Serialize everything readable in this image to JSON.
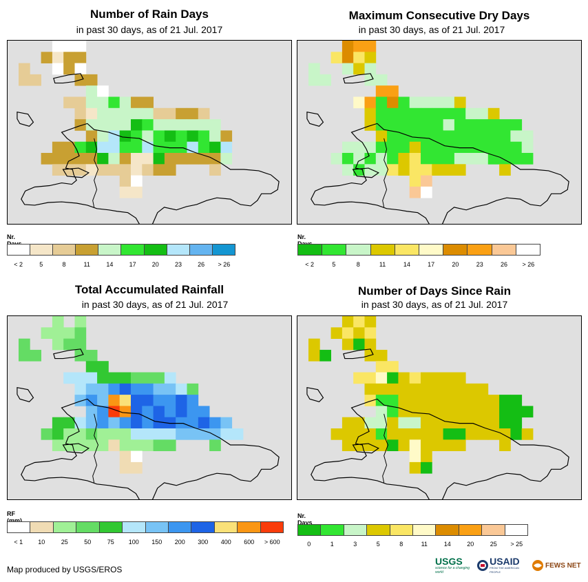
{
  "panels": [
    {
      "id": "rain-days",
      "title": "Number of Rain Days",
      "subtitle": "in past 30 days, as of 21 Jul. 2017",
      "legend_title": "Nr. Days",
      "legend_labels": [
        "< 2",
        "5",
        "8",
        "11",
        "14",
        "17",
        "20",
        "23",
        "26",
        "> 26"
      ],
      "legend_colors": [
        "#ffffff",
        "#f5e6c8",
        "#e6cc96",
        "#c8a032",
        "#c8f5c8",
        "#32e632",
        "#14be14",
        "#b4e6fa",
        "#64b4f0",
        "#1496d2"
      ]
    },
    {
      "id": "dry-days",
      "title": "Maximum Consecutive Dry Days",
      "subtitle": "in past 30 days, as of 21 Jul. 2017",
      "legend_title": "Nr. Days",
      "legend_labels": [
        "< 2",
        "5",
        "8",
        "11",
        "14",
        "17",
        "20",
        "23",
        "26",
        "> 26"
      ],
      "legend_colors": [
        "#14be14",
        "#32e632",
        "#c8f5c8",
        "#dcc800",
        "#fae664",
        "#fffac8",
        "#dc8c00",
        "#faa014",
        "#fac896",
        "#ffffff"
      ]
    },
    {
      "id": "rainfall",
      "title": "Total Accumulated Rainfall",
      "subtitle": "in past 30 days, as of 21 Jul. 2017",
      "legend_title": "RF (mm)",
      "legend_labels": [
        "< 1",
        "10",
        "25",
        "50",
        "75",
        "100",
        "150",
        "200",
        "300",
        "400",
        "600",
        "> 600"
      ],
      "legend_colors": [
        "#ffffff",
        "#f0dcb4",
        "#a0f096",
        "#64dc64",
        "#32c832",
        "#b4e6fa",
        "#78c3f5",
        "#3c96f0",
        "#1e64e6",
        "#fae178",
        "#fa9614",
        "#fa3c0a"
      ]
    },
    {
      "id": "since-rain",
      "title": "Number of Days Since Rain",
      "subtitle": "in past 30 days, as of 21 Jul. 2017",
      "legend_title": "Nr. Days",
      "legend_labels": [
        "0",
        "1",
        "3",
        "5",
        "8",
        "11",
        "14",
        "20",
        "25",
        "> 25"
      ],
      "legend_colors": [
        "#14be14",
        "#32e632",
        "#c8f5c8",
        "#dcc800",
        "#fae664",
        "#fffac8",
        "#dc8c00",
        "#faa014",
        "#fac896",
        "#ffffff"
      ]
    }
  ],
  "footer": "Map produced by USGS/EROS",
  "logos": [
    "USGS",
    "USAID",
    "FEWS NET"
  ],
  "logo_taglines": [
    "science for a changing world",
    "FROM THE AMERICAN PEOPLE"
  ],
  "grids": {
    "rain-days": [
      "...000....................",
      "..3133....................",
      "2..030....................",
      "22...33...................",
      "......40..................",
      "....22445433..............",
      ".....214444422332.........",
      ".....3444465444444........",
      "......3476545656543.......",
      "...3356775575557567.......",
      "..33333643116333334.......",
      "...22212221233...2........",
      ".........20...............",
      ".........11..............."
    ],
    "dry-days": [
      "...677....................",
      "..4643....................",
      "2..232....................",
      "22...22...................",
      "......77..................",
      "....5716122223............",
      ".....311111111223.........",
      ".....31111112111111.......",
      "......31111111111122......",
      "...22211131111111112......",
      "..212121341112221111......",
      "...21224344333...3........",
      ".........48...............",
      ".........89..............."
    ],
    "rainfall": [
      "...2.2....................",
      "..2223....................",
      "3..233....................",
      "33...33...................",
      "......44..................",
      "....5554443335............",
      ".....56678776653..........",
      ".....676A9887787..........",
      "......67BA8787877.........",
      "...4456767878877876.......",
      "..342232225555666655......",
      "...22222122233...3........",
      ".........10...............",
      ".........11..............."
    ],
    "since-rain": [
      "...343....................",
      "..3434....................",
      "3..303....................",
      "30...33...................",
      "......44..................",
      "....4450343333............",
      ".....33333333333..........",
      ".....41133333333300.......",
      "......21333333333000......",
      "...3322322333333300.......",
      "..333313333300333303......",
      "...33330353333...3........",
      ".........53...............",
      ".........30..............."
    ]
  }
}
